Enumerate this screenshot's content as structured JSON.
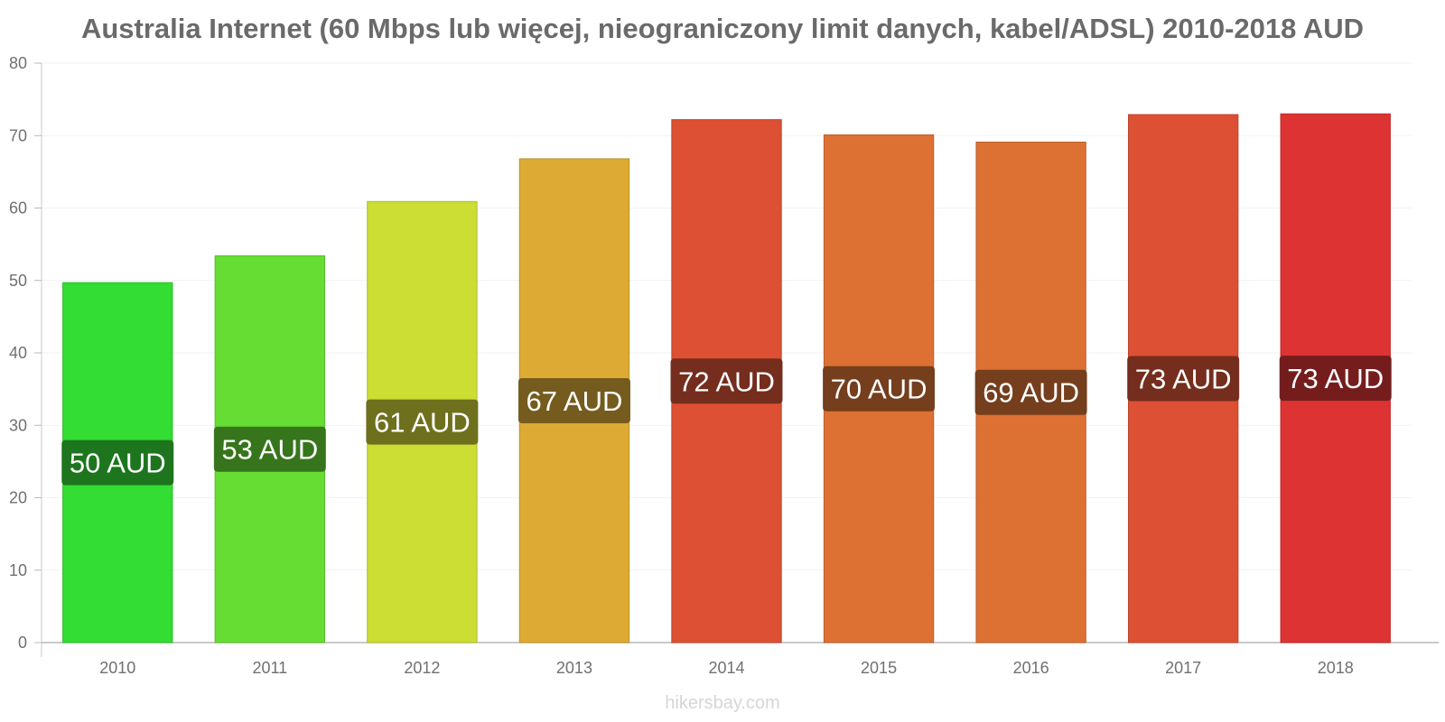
{
  "chart_data": {
    "type": "bar",
    "title": "Australia Internet (60 Mbps lub więcej, nieograniczony limit danych, kabel/ADSL) 2010-2018 AUD",
    "xlabel": "",
    "ylabel": "",
    "categories": [
      "2010",
      "2011",
      "2012",
      "2013",
      "2014",
      "2015",
      "2016",
      "2017",
      "2018"
    ],
    "values": [
      49.7,
      53.4,
      60.9,
      66.8,
      72.2,
      70.1,
      69.1,
      72.9,
      73.0
    ],
    "data_labels": [
      "50 AUD",
      "53 AUD",
      "61 AUD",
      "67 AUD",
      "72 AUD",
      "70 AUD",
      "69 AUD",
      "73 AUD",
      "73 AUD"
    ],
    "bar_colors": [
      "#33dd33",
      "#66dd33",
      "#ccdd33",
      "#ddaa33",
      "#dd5033",
      "#dd7033",
      "#dd7033",
      "#dd5033",
      "#dd3333"
    ],
    "label_bg_colors": [
      "#1b6b1b",
      "#336b1b",
      "#66661b",
      "#6b551b",
      "#6b2a1b",
      "#6b3a1b",
      "#6b3a1b",
      "#6b2a1b",
      "#6b1b1b"
    ],
    "yticks": [
      0,
      10,
      20,
      30,
      40,
      50,
      60,
      70,
      80
    ],
    "ylim": [
      0,
      80
    ],
    "grid": true,
    "legend": "none"
  },
  "watermark": "hikersbay.com"
}
